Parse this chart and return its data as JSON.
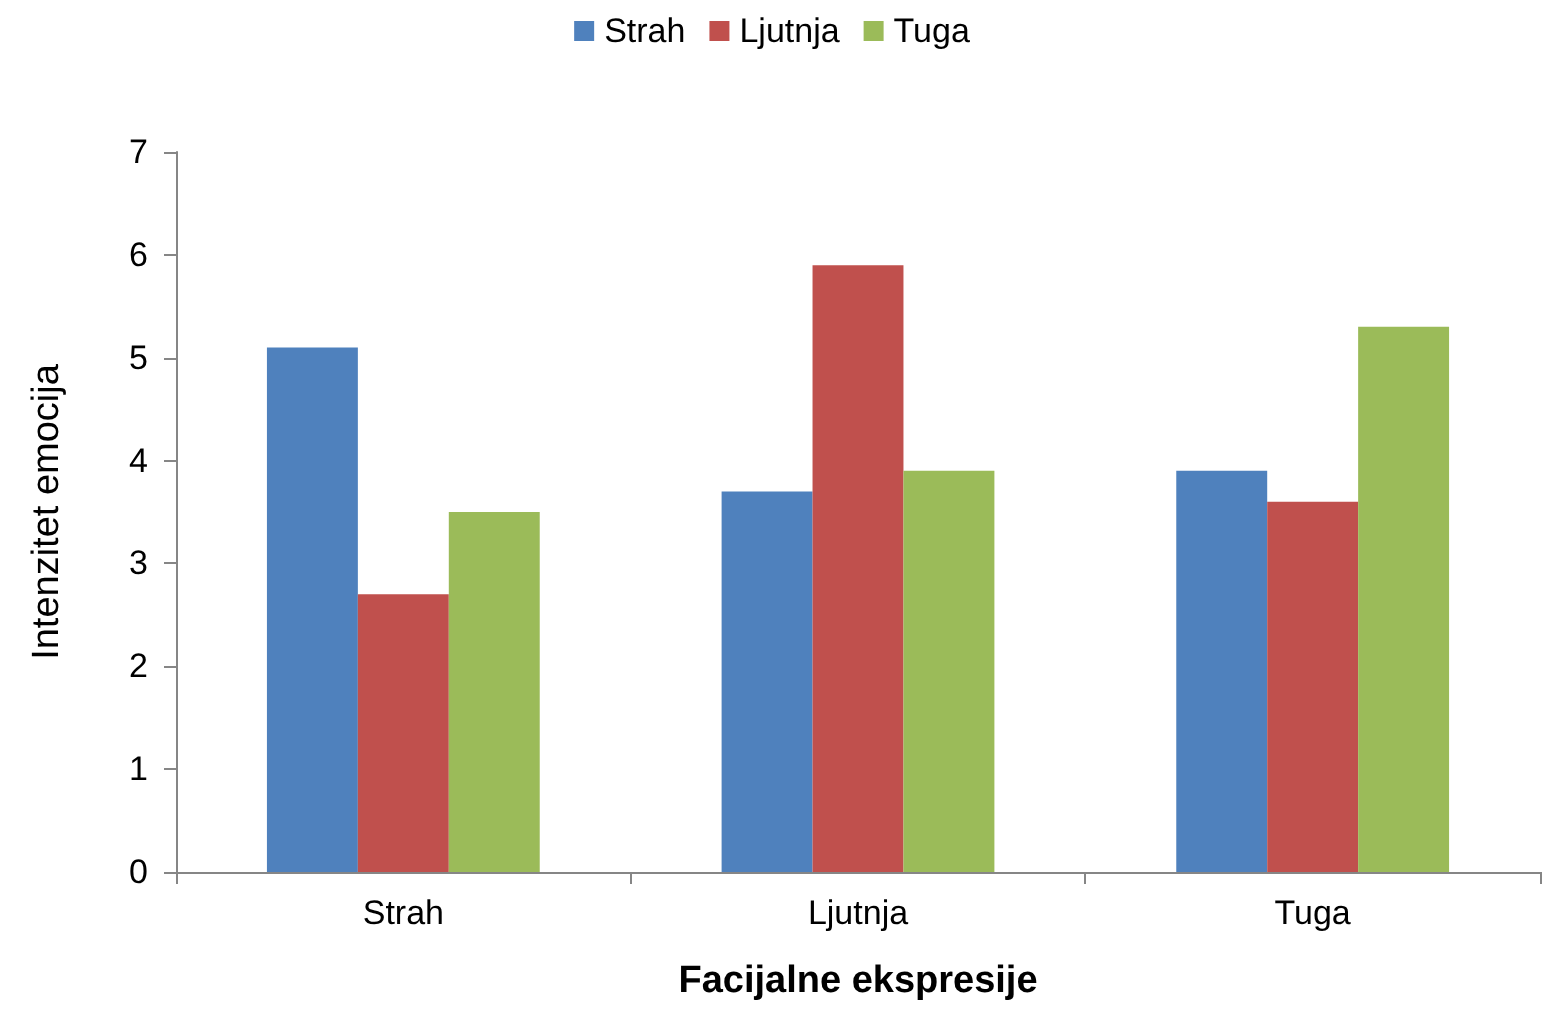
{
  "chart_data": {
    "type": "bar",
    "xlabel": "Facijalne ekspresije",
    "ylabel": "Intenzitet emocija",
    "categories": [
      "Strah",
      "Ljutnja",
      "Tuga"
    ],
    "series": [
      {
        "name": "Strah",
        "color": "#4f81bd",
        "values": [
          5.1,
          3.7,
          3.9
        ]
      },
      {
        "name": "Ljutnja",
        "color": "#c0504d",
        "values": [
          2.7,
          5.9,
          3.6
        ]
      },
      {
        "name": "Tuga",
        "color": "#9bbb59",
        "values": [
          3.5,
          3.9,
          5.3
        ]
      }
    ],
    "ylim": [
      0,
      7
    ],
    "yticks": [
      0,
      1,
      2,
      3,
      4,
      5,
      6,
      7
    ],
    "grid": false,
    "legend": "top"
  }
}
